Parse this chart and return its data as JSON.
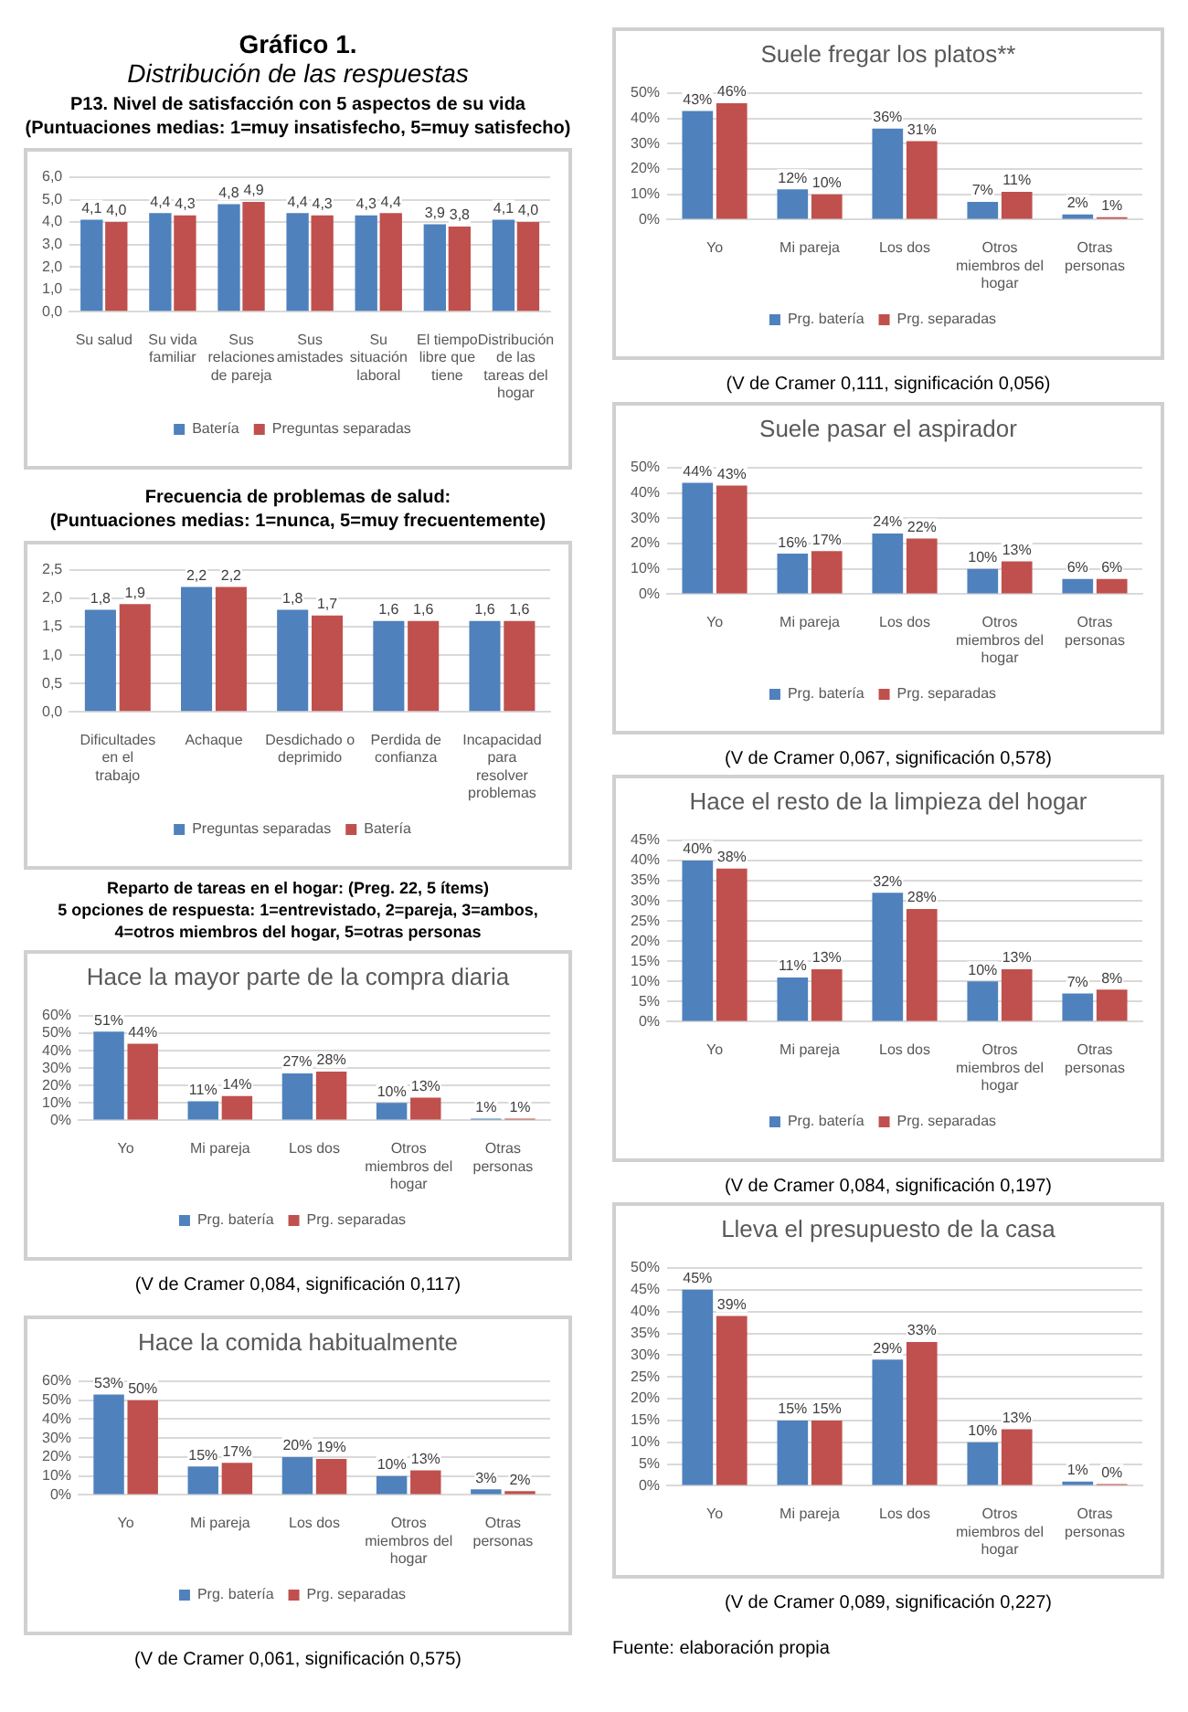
{
  "chart_data": [
    {
      "type": "bar",
      "subtitle": "Gráfico 1.\nDistribución de las respuestas",
      "title": "P13. Nivel de satisfacción con 5 aspectos de su vida\n(Puntuaciones medias: 1=muy insatisfecho, 5=muy satisfecho)",
      "categories": [
        "Su salud",
        "Su vida familiar",
        "Sus relaciones de pareja",
        "Sus amistades",
        "Su situación laboral",
        "El tiempo libre que tiene",
        "Distribución de las tareas del hogar"
      ],
      "series": [
        {
          "name": "Batería",
          "color": "#4f81bd",
          "values": [
            4.1,
            4.4,
            4.8,
            4.4,
            4.3,
            3.9,
            4.1
          ],
          "value_labels": [
            "4,1",
            "4,4",
            "4,8",
            "4,4",
            "4,3",
            "3,9",
            "4,1"
          ]
        },
        {
          "name": "Preguntas separadas",
          "color": "#c0504d",
          "values": [
            4.0,
            4.3,
            4.9,
            4.3,
            4.4,
            3.8,
            4.0
          ],
          "value_labels": [
            "4,0",
            "4,3",
            "4,9",
            "4,3",
            "4,4",
            "3,8",
            "4,0"
          ]
        }
      ],
      "ylim": [
        0,
        6
      ],
      "yticks": [
        {
          "value": 0,
          "label": "0,0"
        },
        {
          "value": 1,
          "label": "1,0"
        },
        {
          "value": 2,
          "label": "2,0"
        },
        {
          "value": 3,
          "label": "3,0"
        },
        {
          "value": 4,
          "label": "4,0"
        },
        {
          "value": 5,
          "label": "5,0"
        },
        {
          "value": 6,
          "label": "6,0"
        }
      ],
      "grid": "y",
      "legend": "bottom"
    },
    {
      "type": "bar",
      "title": "Frecuencia de problemas de salud:\n(Puntuaciones medias: 1=nunca, 5=muy frecuentemente)",
      "categories": [
        "Dificultades en el trabajo",
        "Achaque",
        "Desdichado o deprimido",
        "Perdida de confianza",
        "Incapacidad para resolver problemas"
      ],
      "series": [
        {
          "name": "Preguntas separadas",
          "color": "#4f81bd",
          "values": [
            1.8,
            2.2,
            1.8,
            1.6,
            1.6
          ],
          "value_labels": [
            "1,8",
            "2,2",
            "1,8",
            "1,6",
            "1,6"
          ]
        },
        {
          "name": "Batería",
          "color": "#c0504d",
          "values": [
            1.9,
            2.2,
            1.7,
            1.6,
            1.6
          ],
          "value_labels": [
            "1,9",
            "2,2",
            "1,7",
            "1,6",
            "1,6"
          ]
        }
      ],
      "ylim": [
        0,
        2.5
      ],
      "yticks": [
        {
          "value": 0,
          "label": "0,0"
        },
        {
          "value": 0.5,
          "label": "0,5"
        },
        {
          "value": 1,
          "label": "1,0"
        },
        {
          "value": 1.5,
          "label": "1,5"
        },
        {
          "value": 2,
          "label": "2,0"
        },
        {
          "value": 2.5,
          "label": "2,5"
        }
      ],
      "grid": "y",
      "legend": "bottom"
    },
    {
      "type": "bar",
      "subtitle": "Reparto de tareas en el hogar: (Preg. 22, 5 ítems)\n5 opciones de respuesta: 1=entrevistado, 2=pareja, 3=ambos,\n4=otros miembros del hogar, 5=otras personas",
      "title": "Hace la mayor parte de la compra diaria",
      "categories": [
        "Yo",
        "Mi pareja",
        "Los dos",
        "Otros miembros del hogar",
        "Otras personas"
      ],
      "series": [
        {
          "name": "Prg. batería",
          "color": "#4f81bd",
          "values": [
            51,
            11,
            27,
            10,
            1
          ],
          "value_labels": [
            "51%",
            "11%",
            "27%",
            "10%",
            "1%"
          ]
        },
        {
          "name": "Prg. separadas",
          "color": "#c0504d",
          "values": [
            44,
            14,
            28,
            13,
            1
          ],
          "value_labels": [
            "44%",
            "14%",
            "28%",
            "13%",
            "1%"
          ]
        }
      ],
      "ylim": [
        0,
        60
      ],
      "yticks": [
        {
          "value": 0,
          "label": "0%"
        },
        {
          "value": 10,
          "label": "10%"
        },
        {
          "value": 20,
          "label": "20%"
        },
        {
          "value": 30,
          "label": "30%"
        },
        {
          "value": 40,
          "label": "40%"
        },
        {
          "value": 50,
          "label": "50%"
        },
        {
          "value": 60,
          "label": "60%"
        }
      ],
      "grid": "y",
      "legend": "bottom",
      "annotations": [
        "(V de Cramer 0,084, significación 0,117)"
      ]
    },
    {
      "type": "bar",
      "title": "Hace la comida habitualmente",
      "categories": [
        "Yo",
        "Mi pareja",
        "Los dos",
        "Otros miembros del hogar",
        "Otras personas"
      ],
      "series": [
        {
          "name": "Prg. batería",
          "color": "#4f81bd",
          "values": [
            53,
            15,
            20,
            10,
            3
          ],
          "value_labels": [
            "53%",
            "15%",
            "20%",
            "10%",
            "3%"
          ]
        },
        {
          "name": "Prg. separadas",
          "color": "#c0504d",
          "values": [
            50,
            17,
            19,
            13,
            2
          ],
          "value_labels": [
            "50%",
            "17%",
            "19%",
            "13%",
            "2%"
          ]
        }
      ],
      "ylim": [
        0,
        60
      ],
      "yticks": [
        {
          "value": 0,
          "label": "0%"
        },
        {
          "value": 10,
          "label": "10%"
        },
        {
          "value": 20,
          "label": "20%"
        },
        {
          "value": 30,
          "label": "30%"
        },
        {
          "value": 40,
          "label": "40%"
        },
        {
          "value": 50,
          "label": "50%"
        },
        {
          "value": 60,
          "label": "60%"
        }
      ],
      "grid": "y",
      "legend": "bottom",
      "annotations": [
        "(V de Cramer 0,061, significación 0,575)"
      ]
    },
    {
      "type": "bar",
      "title": "Suele fregar los platos**",
      "categories": [
        "Yo",
        "Mi pareja",
        "Los dos",
        "Otros miembros del hogar",
        "Otras personas"
      ],
      "series": [
        {
          "name": "Prg. batería",
          "color": "#4f81bd",
          "values": [
            43,
            12,
            36,
            7,
            2
          ],
          "value_labels": [
            "43%",
            "12%",
            "36%",
            "7%",
            "2%"
          ]
        },
        {
          "name": "Prg. separadas",
          "color": "#c0504d",
          "values": [
            46,
            10,
            31,
            11,
            1
          ],
          "value_labels": [
            "46%",
            "10%",
            "31%",
            "11%",
            "1%"
          ]
        }
      ],
      "ylim": [
        0,
        50
      ],
      "yticks": [
        {
          "value": 0,
          "label": "0%"
        },
        {
          "value": 10,
          "label": "10%"
        },
        {
          "value": 20,
          "label": "20%"
        },
        {
          "value": 30,
          "label": "30%"
        },
        {
          "value": 40,
          "label": "40%"
        },
        {
          "value": 50,
          "label": "50%"
        }
      ],
      "grid": "y",
      "legend": "bottom",
      "annotations": [
        "(V de Cramer 0,111, significación 0,056)"
      ]
    },
    {
      "type": "bar",
      "title": "Suele pasar el aspirador",
      "categories": [
        "Yo",
        "Mi pareja",
        "Los dos",
        "Otros miembros del hogar",
        "Otras personas"
      ],
      "series": [
        {
          "name": "Prg. batería",
          "color": "#4f81bd",
          "values": [
            44,
            16,
            24,
            10,
            6
          ],
          "value_labels": [
            "44%",
            "16%",
            "24%",
            "10%",
            "6%"
          ]
        },
        {
          "name": "Prg. separadas",
          "color": "#c0504d",
          "values": [
            43,
            17,
            22,
            13,
            6
          ],
          "value_labels": [
            "43%",
            "17%",
            "22%",
            "13%",
            "6%"
          ]
        }
      ],
      "ylim": [
        0,
        50
      ],
      "yticks": [
        {
          "value": 0,
          "label": "0%"
        },
        {
          "value": 10,
          "label": "10%"
        },
        {
          "value": 20,
          "label": "20%"
        },
        {
          "value": 30,
          "label": "30%"
        },
        {
          "value": 40,
          "label": "40%"
        },
        {
          "value": 50,
          "label": "50%"
        }
      ],
      "grid": "y",
      "legend": "bottom",
      "annotations": [
        "(V de Cramer 0,067, significación 0,578)"
      ]
    },
    {
      "type": "bar",
      "title": "Hace el resto de la limpieza del hogar",
      "categories": [
        "Yo",
        "Mi pareja",
        "Los dos",
        "Otros miembros del hogar",
        "Otras personas"
      ],
      "series": [
        {
          "name": "Prg. batería",
          "color": "#4f81bd",
          "values": [
            40,
            11,
            32,
            10,
            7
          ],
          "value_labels": [
            "40%",
            "11%",
            "32%",
            "10%",
            "7%"
          ]
        },
        {
          "name": "Prg. separadas",
          "color": "#c0504d",
          "values": [
            38,
            13,
            28,
            13,
            8
          ],
          "value_labels": [
            "38%",
            "13%",
            "28%",
            "13%",
            "8%"
          ]
        }
      ],
      "ylim": [
        0,
        45
      ],
      "yticks": [
        {
          "value": 0,
          "label": "0%"
        },
        {
          "value": 5,
          "label": "5%"
        },
        {
          "value": 10,
          "label": "10%"
        },
        {
          "value": 15,
          "label": "15%"
        },
        {
          "value": 20,
          "label": "20%"
        },
        {
          "value": 25,
          "label": "25%"
        },
        {
          "value": 30,
          "label": "30%"
        },
        {
          "value": 35,
          "label": "35%"
        },
        {
          "value": 40,
          "label": "40%"
        },
        {
          "value": 45,
          "label": "45%"
        }
      ],
      "grid": "y",
      "legend": "bottom",
      "annotations": [
        "(V de Cramer 0,084, significación 0,197)"
      ]
    },
    {
      "type": "bar",
      "title": "Lleva el presupuesto de la casa",
      "categories": [
        "Yo",
        "Mi pareja",
        "Los dos",
        "Otros miembros del hogar",
        "Otras personas"
      ],
      "series": [
        {
          "color": "#4f81bd",
          "values": [
            45,
            15,
            29,
            10,
            1
          ],
          "value_labels": [
            "45%",
            "15%",
            "29%",
            "10%",
            "1%"
          ]
        },
        {
          "color": "#c0504d",
          "values": [
            39,
            15,
            33,
            13,
            0.4
          ],
          "value_labels": [
            "39%",
            "15%",
            "33%",
            "13%",
            "0%"
          ]
        }
      ],
      "ylim": [
        0,
        50
      ],
      "yticks": [
        {
          "value": 0,
          "label": "0%"
        },
        {
          "value": 5,
          "label": "5%"
        },
        {
          "value": 10,
          "label": "10%"
        },
        {
          "value": 15,
          "label": "15%"
        },
        {
          "value": 20,
          "label": "20%"
        },
        {
          "value": 25,
          "label": "25%"
        },
        {
          "value": 30,
          "label": "30%"
        },
        {
          "value": 35,
          "label": "35%"
        },
        {
          "value": 40,
          "label": "40%"
        },
        {
          "value": 45,
          "label": "45%"
        },
        {
          "value": 50,
          "label": "50%"
        }
      ],
      "grid": "y",
      "legend": false,
      "annotations": [
        "(V de Cramer 0,089, significación 0,227)",
        "Fuente: elaboración propia"
      ]
    }
  ]
}
